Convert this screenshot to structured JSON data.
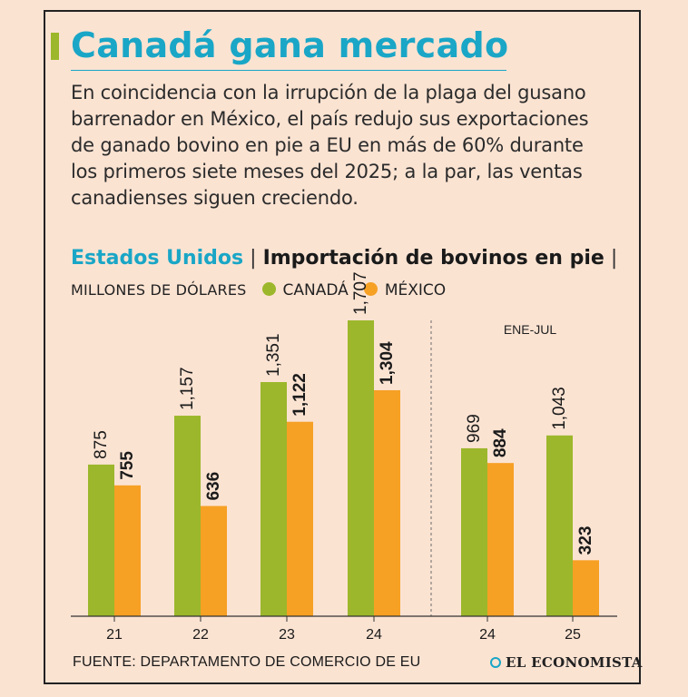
{
  "header": {
    "title": "Canadá gana mercado",
    "lead": "En coincidencia con la irrupción de la plaga del gusano barrenador en México, el país redujo sus exportaciones de ganado bovino en pie a EU en más de 60% durante los primeros siete meses del 2025; a la par, las ventas canadienses siguen creciendo."
  },
  "chart_heading": {
    "country": "Estados Unidos",
    "separator": "|",
    "title": "Importación de bovinos en pie",
    "unit": "MILLONES DE DÓLARES"
  },
  "footer": {
    "source": "FUENTE: DEPARTAMENTO DE COMERCIO DE EU",
    "logo_text": "EL ECONOMISTA"
  },
  "chart_data": {
    "type": "bar",
    "categories": [
      "21",
      "22",
      "23",
      "24",
      "24",
      "25"
    ],
    "series": [
      {
        "name": "CANADÁ",
        "color": "#9cb72b",
        "values": [
          875,
          1157,
          1351,
          1707,
          969,
          1043
        ],
        "labels": [
          "875",
          "1,157",
          "1,351",
          "1,707",
          "969",
          "1,043"
        ]
      },
      {
        "name": "MÉXICO",
        "color": "#f6a024",
        "values": [
          755,
          636,
          1122,
          1304,
          884,
          323
        ],
        "labels": [
          "755",
          "636",
          "1,122",
          "1,304",
          "884",
          "323"
        ]
      }
    ],
    "annotation": "ENE-JUL",
    "ylim": [
      0,
      1707
    ],
    "legend": "top-right",
    "grid": false
  }
}
